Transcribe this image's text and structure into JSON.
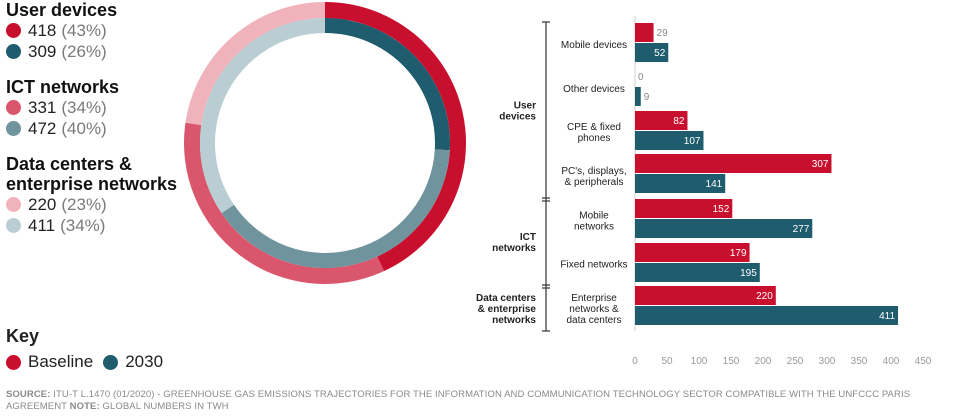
{
  "colors": {
    "baseline": "#c8102e",
    "y2030": "#1f5c6e",
    "ict_baseline": "#d9566c",
    "ict_2030": "#6f949d",
    "dc_baseline": "#f0b3bc",
    "dc_2030": "#b9cdd3"
  },
  "legend": {
    "user_devices": {
      "title": "User devices",
      "baseline": "418",
      "baseline_pct": "(43%)",
      "y2030": "309",
      "y2030_pct": "(26%)"
    },
    "ict_networks": {
      "title": "ICT networks",
      "baseline": "331",
      "baseline_pct": "(34%)",
      "y2030": "472",
      "y2030_pct": "(40%)"
    },
    "data_centers": {
      "title_line1": "Data centers &",
      "title_line2": "enterprise networks",
      "baseline": "220",
      "baseline_pct": "(23%)",
      "y2030": "411",
      "y2030_pct": "(34%)"
    }
  },
  "key": {
    "title": "Key",
    "baseline_label": "Baseline",
    "y2030_label": "2030"
  },
  "footer": {
    "source_label": "SOURCE:",
    "source_text": "ITU-T L.1470 (01/2020) - Greenhouse gas emissions trajectories for the information and communication technology sector compatible with the UNFCCC Paris Agreement",
    "note_label": "NOTE:",
    "note_text": "Global numbers in TWh"
  },
  "chart_data": [
    {
      "type": "pie",
      "subtype": "nested-donut",
      "rings": [
        {
          "name": "Baseline",
          "categories": [
            "User devices",
            "ICT networks",
            "Data centers & enterprise networks"
          ],
          "values": [
            418,
            331,
            220
          ],
          "percent": [
            43,
            34,
            23
          ]
        },
        {
          "name": "2030",
          "categories": [
            "User devices",
            "ICT networks",
            "Data centers & enterprise networks"
          ],
          "values": [
            309,
            472,
            411
          ],
          "percent": [
            26,
            40,
            34
          ]
        }
      ]
    },
    {
      "type": "bar",
      "orientation": "horizontal",
      "groups": [
        {
          "label_lines": [
            "User",
            "devices"
          ],
          "start": 0,
          "count": 4
        },
        {
          "label_lines": [
            "ICT",
            "networks"
          ],
          "start": 4,
          "count": 2
        },
        {
          "label_lines": [
            "Data centers",
            "& enterprise",
            "networks"
          ],
          "start": 6,
          "count": 1
        }
      ],
      "categories": [
        [
          "Mobile devices"
        ],
        [
          "Other devices"
        ],
        [
          "CPE & fixed",
          "phones"
        ],
        [
          "PC's, displays,",
          "& peripherals"
        ],
        [
          "Mobile",
          "networks"
        ],
        [
          "Fixed networks"
        ],
        [
          "Enterprise",
          "networks &",
          "data centers"
        ]
      ],
      "series": [
        {
          "name": "Baseline",
          "values": [
            29,
            0,
            82,
            307,
            152,
            179,
            220
          ]
        },
        {
          "name": "2030",
          "values": [
            52,
            9,
            107,
            141,
            277,
            195,
            411
          ]
        }
      ],
      "xticks": [
        "0",
        "50",
        "100",
        "150",
        "200",
        "250",
        "300",
        "350",
        "400",
        "450"
      ],
      "xlim": [
        0,
        450
      ]
    }
  ]
}
